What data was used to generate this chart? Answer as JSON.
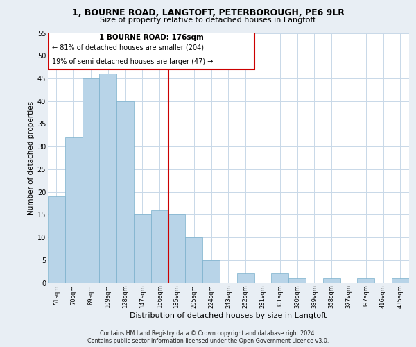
{
  "title_line1": "1, BOURNE ROAD, LANGTOFT, PETERBOROUGH, PE6 9LR",
  "title_line2": "Size of property relative to detached houses in Langtoft",
  "xlabel": "Distribution of detached houses by size in Langtoft",
  "ylabel": "Number of detached properties",
  "bar_values": [
    19,
    32,
    45,
    46,
    40,
    15,
    16,
    15,
    10,
    5,
    0,
    2,
    0,
    2,
    1,
    0,
    1,
    0,
    1,
    0,
    1
  ],
  "bin_labels": [
    "51sqm",
    "70sqm",
    "89sqm",
    "109sqm",
    "128sqm",
    "147sqm",
    "166sqm",
    "185sqm",
    "205sqm",
    "224sqm",
    "243sqm",
    "262sqm",
    "281sqm",
    "301sqm",
    "320sqm",
    "339sqm",
    "358sqm",
    "377sqm",
    "397sqm",
    "416sqm",
    "435sqm"
  ],
  "bar_color": "#b8d4e8",
  "bar_edge_color": "#7ab0cc",
  "annotation_line1": "1 BOURNE ROAD: 176sqm",
  "annotation_line2": "← 81% of detached houses are smaller (204)",
  "annotation_line3": "19% of semi-detached houses are larger (47) →",
  "vline_x_index": 6.5,
  "vline_color": "#cc0000",
  "ylim": [
    0,
    55
  ],
  "yticks": [
    0,
    5,
    10,
    15,
    20,
    25,
    30,
    35,
    40,
    45,
    50,
    55
  ],
  "footer_line1": "Contains HM Land Registry data © Crown copyright and database right 2024.",
  "footer_line2": "Contains public sector information licensed under the Open Government Licence v3.0.",
  "bg_color": "#e8eef4",
  "plot_bg_color": "#ffffff",
  "grid_color": "#c8d8e8"
}
